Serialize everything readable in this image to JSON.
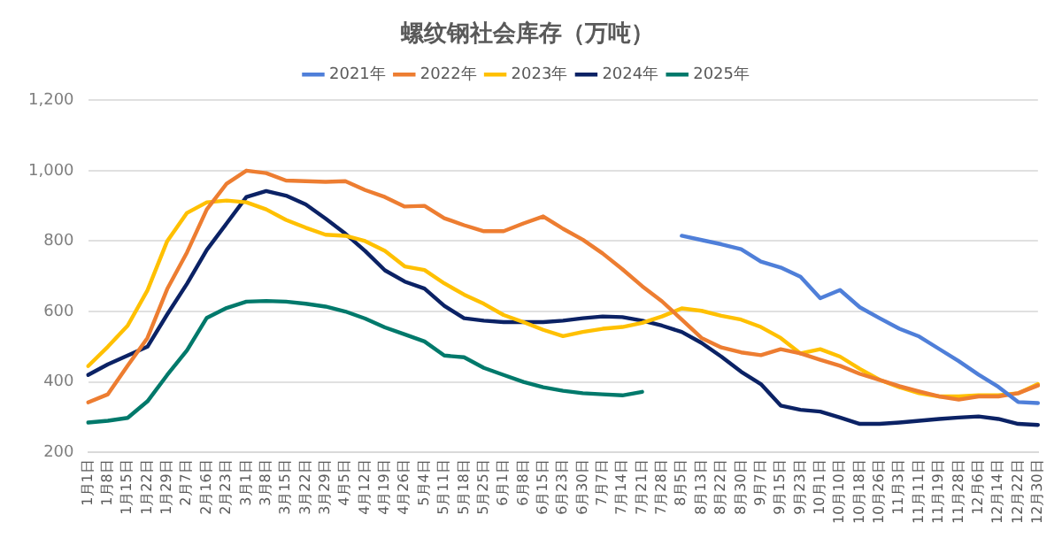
{
  "chart_data": {
    "type": "line",
    "title": "螺纹钢社会库存（万吨）",
    "categories": [
      "1月1日",
      "1月8日",
      "1月15日",
      "1月22日",
      "1月29日",
      "2月7日",
      "2月16日",
      "2月23日",
      "3月1日",
      "3月8日",
      "3月15日",
      "3月22日",
      "3月29日",
      "4月5日",
      "4月12日",
      "4月19日",
      "4月26日",
      "5月4日",
      "5月11日",
      "5月18日",
      "5月25日",
      "6月1日",
      "6月8日",
      "6月15日",
      "6月23日",
      "6月30日",
      "7月7日",
      "7月14日",
      "7月21日",
      "7月28日",
      "8月5日",
      "8月13日",
      "8月22日",
      "8月30日",
      "9月7日",
      "9月15日",
      "9月23日",
      "10月1日",
      "10月10日",
      "10月18日",
      "10月26日",
      "11月3日",
      "11月11日",
      "11月19日",
      "11月28日",
      "12月6日",
      "12月14日",
      "12月22日",
      "12月30日"
    ],
    "series": [
      {
        "name": "2021年",
        "color": "#4f7fd9",
        "values": [
          null,
          null,
          null,
          null,
          null,
          null,
          null,
          null,
          null,
          null,
          null,
          null,
          null,
          null,
          null,
          null,
          null,
          null,
          null,
          null,
          null,
          null,
          null,
          null,
          null,
          null,
          null,
          null,
          null,
          null,
          815,
          803,
          791,
          777,
          742,
          725,
          699,
          638,
          661,
          612,
          581,
          551,
          529,
          494,
          459,
          421,
          386,
          343,
          340
        ]
      },
      {
        "name": "2022年",
        "color": "#ed7d31",
        "values": [
          342,
          365,
          446,
          525,
          664,
          768,
          890,
          963,
          1000,
          993,
          972,
          970,
          968,
          970,
          945,
          925,
          898,
          900,
          865,
          845,
          828,
          828,
          850,
          870,
          835,
          804,
          765,
          720,
          672,
          629,
          577,
          525,
          498,
          484,
          476,
          493,
          481,
          463,
          446,
          423,
          406,
          388,
          373,
          359,
          350,
          359,
          359,
          368,
          390
        ]
      },
      {
        "name": "2023年",
        "color": "#ffc000",
        "values": [
          445,
          500,
          560,
          660,
          800,
          880,
          910,
          915,
          910,
          890,
          860,
          838,
          818,
          815,
          800,
          772,
          728,
          718,
          680,
          648,
          622,
          590,
          570,
          548,
          530,
          542,
          551,
          556,
          568,
          586,
          609,
          602,
          588,
          577,
          556,
          525,
          481,
          493,
          472,
          437,
          406,
          385,
          368,
          359,
          359,
          362,
          362,
          368,
          394
        ]
      },
      {
        "name": "2024年",
        "color": "#0b2265",
        "values": [
          420,
          450,
          475,
          500,
          592,
          679,
          775,
          850,
          925,
          942,
          929,
          904,
          864,
          821,
          772,
          717,
          685,
          665,
          616,
          581,
          574,
          570,
          570,
          570,
          574,
          581,
          586,
          584,
          574,
          560,
          542,
          511,
          472,
          429,
          394,
          333,
          321,
          316,
          299,
          281,
          281,
          285,
          290,
          295,
          299,
          302,
          295,
          281,
          278
        ]
      },
      {
        "name": "2025年",
        "color": "#00796b",
        "values": [
          285,
          290,
          298,
          345,
          420,
          490,
          582,
          610,
          628,
          630,
          628,
          622,
          614,
          600,
          580,
          555,
          535,
          515,
          475,
          470,
          440,
          420,
          400,
          385,
          375,
          368,
          365,
          362,
          372,
          null,
          null,
          null,
          null,
          null,
          null,
          null,
          null,
          null,
          null,
          null,
          null,
          null,
          null,
          null,
          null,
          null,
          null,
          null,
          null
        ]
      }
    ],
    "ylim": [
      200,
      1200
    ],
    "yticks": [
      200,
      400,
      600,
      800,
      {
        "value": 1000,
        "label": "1,000"
      },
      {
        "value": 1200,
        "label": "1,200"
      }
    ],
    "grid": "y",
    "legend": "top",
    "marker": "none",
    "line_style": "solid"
  }
}
